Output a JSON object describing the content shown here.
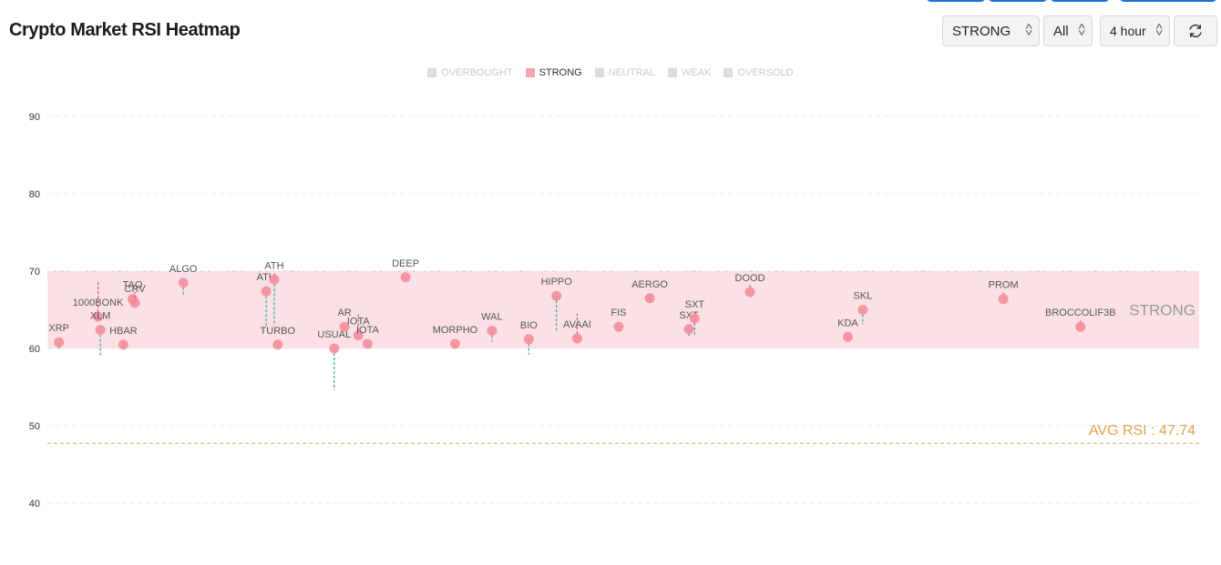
{
  "header": {
    "title": "Crypto Market RSI Heatmap"
  },
  "controls": {
    "signal_filter": "STRONG",
    "scope_filter": "All",
    "timeframe": "4 hour",
    "refresh_icon": "refresh-icon"
  },
  "legend": [
    {
      "label": "OVERBOUGHT",
      "active": false
    },
    {
      "label": "STRONG",
      "active": true
    },
    {
      "label": "NEUTRAL",
      "active": false
    },
    {
      "label": "WEAK",
      "active": false
    },
    {
      "label": "OVERSOLD",
      "active": false
    }
  ],
  "colors": {
    "point": "#f48e9c",
    "band": "#fbe1e5",
    "avg_line": "#e8a050",
    "up_tail": "#e0566b",
    "down_tail": "#3aa39a"
  },
  "chart_data": {
    "type": "scatter",
    "title": "Crypto Market RSI Heatmap",
    "ylim": [
      35,
      95
    ],
    "yticks": [
      40,
      50,
      60,
      70,
      80,
      90
    ],
    "grid": true,
    "band": {
      "label": "STRONG",
      "from": 60,
      "to": 70
    },
    "avg": {
      "label": "AVG RSI : 47.74",
      "value": 47.74
    },
    "points": [
      {
        "name": "XRP",
        "x": 1,
        "rsi": 60.8,
        "prev": 60.0
      },
      {
        "name": "1000BONK",
        "x": 4.4,
        "rsi": 64.1,
        "prev": 68.8
      },
      {
        "name": "XLM",
        "x": 4.6,
        "rsi": 62.4,
        "prev": 59.1
      },
      {
        "name": "HBAR",
        "x": 6.6,
        "rsi": 60.5,
        "prev": 60.2
      },
      {
        "name": "TAO",
        "x": 7.4,
        "rsi": 66.4,
        "prev": 67.0
      },
      {
        "name": "CRV",
        "x": 7.6,
        "rsi": 65.9,
        "prev": 67.3
      },
      {
        "name": "ALGO",
        "x": 11.8,
        "rsi": 68.5,
        "prev": 66.7
      },
      {
        "name": "ATH",
        "x": 19.0,
        "rsi": 67.4,
        "prev": 62.9
      },
      {
        "name": "ATH",
        "x": 19.7,
        "rsi": 68.9,
        "prev": 63.1
      },
      {
        "name": "TURBO",
        "x": 20.0,
        "rsi": 60.5,
        "prev": 60.1
      },
      {
        "name": "USUAL",
        "x": 24.9,
        "rsi": 60.0,
        "prev": 54.6
      },
      {
        "name": "AR",
        "x": 25.8,
        "rsi": 62.8,
        "prev": 62.4
      },
      {
        "name": "IOTA",
        "x": 27.0,
        "rsi": 61.7,
        "prev": 64.6
      },
      {
        "name": "IOTA",
        "x": 27.8,
        "rsi": 60.6,
        "prev": 60.3
      },
      {
        "name": "DEEP",
        "x": 31.1,
        "rsi": 69.2,
        "prev": 68.8
      },
      {
        "name": "MORPHO",
        "x": 35.4,
        "rsi": 60.6,
        "prev": 60.3
      },
      {
        "name": "WAL",
        "x": 38.6,
        "rsi": 62.3,
        "prev": 60.9
      },
      {
        "name": "BIO",
        "x": 41.8,
        "rsi": 61.2,
        "prev": 59.2
      },
      {
        "name": "HIPPO",
        "x": 44.2,
        "rsi": 66.8,
        "prev": 62.3
      },
      {
        "name": "AVAAI",
        "x": 46.0,
        "rsi": 61.3,
        "prev": 64.5
      },
      {
        "name": "FIS",
        "x": 49.6,
        "rsi": 62.8,
        "prev": 62.6
      },
      {
        "name": "AERGO",
        "x": 52.3,
        "rsi": 66.5,
        "prev": 65.9
      },
      {
        "name": "SXT",
        "x": 55.7,
        "rsi": 62.5,
        "prev": 61.6
      },
      {
        "name": "SXT",
        "x": 56.2,
        "rsi": 63.9,
        "prev": 61.6
      },
      {
        "name": "DOOD",
        "x": 61.0,
        "rsi": 67.3,
        "prev": 68.2
      },
      {
        "name": "KDA",
        "x": 69.5,
        "rsi": 61.5,
        "prev": 61.7
      },
      {
        "name": "SKL",
        "x": 70.8,
        "rsi": 65.0,
        "prev": 63.1
      },
      {
        "name": "PROM",
        "x": 83.0,
        "rsi": 66.4,
        "prev": 67.2
      },
      {
        "name": "BROCCOLIF3B",
        "x": 89.7,
        "rsi": 62.8,
        "prev": 63.6
      }
    ]
  }
}
